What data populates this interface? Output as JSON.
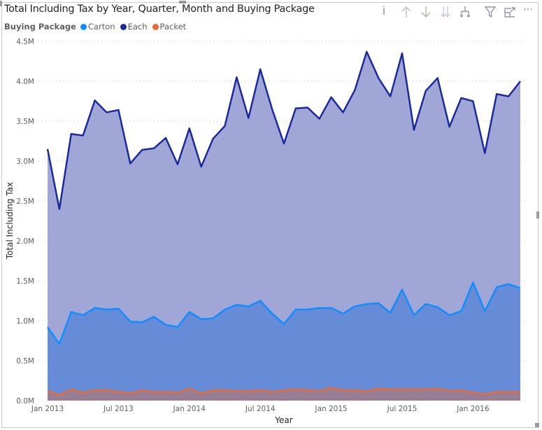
{
  "chart_data": {
    "type": "area",
    "title": "Total Including Tax by Year, Quarter, Month and Buying Package",
    "legend_title": "Buying Package",
    "legend_position": "top-left",
    "xlabel": "Year",
    "ylabel": "Total Including Tax",
    "ylim": [
      0,
      4500000
    ],
    "yticks": [
      "0.0M",
      "0.5M",
      "1.0M",
      "1.5M",
      "2.0M",
      "2.5M",
      "3.0M",
      "3.5M",
      "4.0M",
      "4.5M"
    ],
    "xticks": [
      "Jan 2013",
      "Jul 2013",
      "Jan 2014",
      "Jul 2014",
      "Jan 2015",
      "Jul 2015",
      "Jan 2016"
    ],
    "grid": true,
    "x": [
      "2013-01",
      "2013-02",
      "2013-03",
      "2013-04",
      "2013-05",
      "2013-06",
      "2013-07",
      "2013-08",
      "2013-09",
      "2013-10",
      "2013-11",
      "2013-12",
      "2014-01",
      "2014-02",
      "2014-03",
      "2014-04",
      "2014-05",
      "2014-06",
      "2014-07",
      "2014-08",
      "2014-09",
      "2014-10",
      "2014-11",
      "2014-12",
      "2015-01",
      "2015-02",
      "2015-03",
      "2015-04",
      "2015-05",
      "2015-06",
      "2015-07",
      "2015-08",
      "2015-09",
      "2015-10",
      "2015-11",
      "2015-12",
      "2016-01",
      "2016-02",
      "2016-03",
      "2016-04",
      "2016-05"
    ],
    "series": [
      {
        "name": "Each",
        "color": "#1A2A9E",
        "fill": "#A0A7D7",
        "values": [
          3.15,
          2.4,
          3.34,
          3.32,
          3.76,
          3.61,
          3.64,
          2.97,
          3.14,
          3.16,
          3.29,
          2.96,
          3.41,
          2.93,
          3.28,
          3.44,
          4.05,
          3.54,
          4.15,
          3.65,
          3.22,
          3.66,
          3.67,
          3.53,
          3.8,
          3.61,
          3.89,
          4.37,
          4.04,
          3.81,
          4.35,
          3.39,
          3.88,
          4.04,
          3.43,
          3.79,
          3.75,
          3.1,
          3.84,
          3.81,
          4.0
        ]
      },
      {
        "name": "Carton",
        "color": "#118DFF",
        "fill": "#668BD7",
        "values": [
          0.92,
          0.71,
          1.11,
          1.07,
          1.16,
          1.14,
          1.15,
          0.99,
          0.98,
          1.05,
          0.95,
          0.92,
          1.11,
          1.02,
          1.03,
          1.14,
          1.2,
          1.18,
          1.25,
          1.09,
          0.96,
          1.14,
          1.14,
          1.16,
          1.16,
          1.09,
          1.18,
          1.21,
          1.22,
          1.1,
          1.39,
          1.07,
          1.21,
          1.17,
          1.07,
          1.12,
          1.48,
          1.12,
          1.42,
          1.46,
          1.41
        ]
      },
      {
        "name": "Packet",
        "color": "#E66C37",
        "fill": "#977E94",
        "values": [
          0.12,
          0.07,
          0.14,
          0.1,
          0.13,
          0.13,
          0.11,
          0.09,
          0.13,
          0.11,
          0.11,
          0.1,
          0.15,
          0.09,
          0.13,
          0.13,
          0.12,
          0.12,
          0.13,
          0.11,
          0.13,
          0.14,
          0.13,
          0.12,
          0.16,
          0.13,
          0.13,
          0.12,
          0.15,
          0.14,
          0.14,
          0.14,
          0.14,
          0.15,
          0.12,
          0.13,
          0.1,
          0.08,
          0.11,
          0.11,
          0.11
        ]
      }
    ],
    "value_unit": "M"
  },
  "legend_order": [
    "Carton",
    "Each",
    "Packet"
  ],
  "header_icons": [
    "info-icon",
    "drill-up-icon",
    "drill-down-icon",
    "expand-all-down-icon",
    "expand-hierarchy-icon",
    "filter-icon",
    "focus-mode-icon",
    "more-options-icon"
  ],
  "header_text": {
    "info": "i",
    "more": "···"
  }
}
